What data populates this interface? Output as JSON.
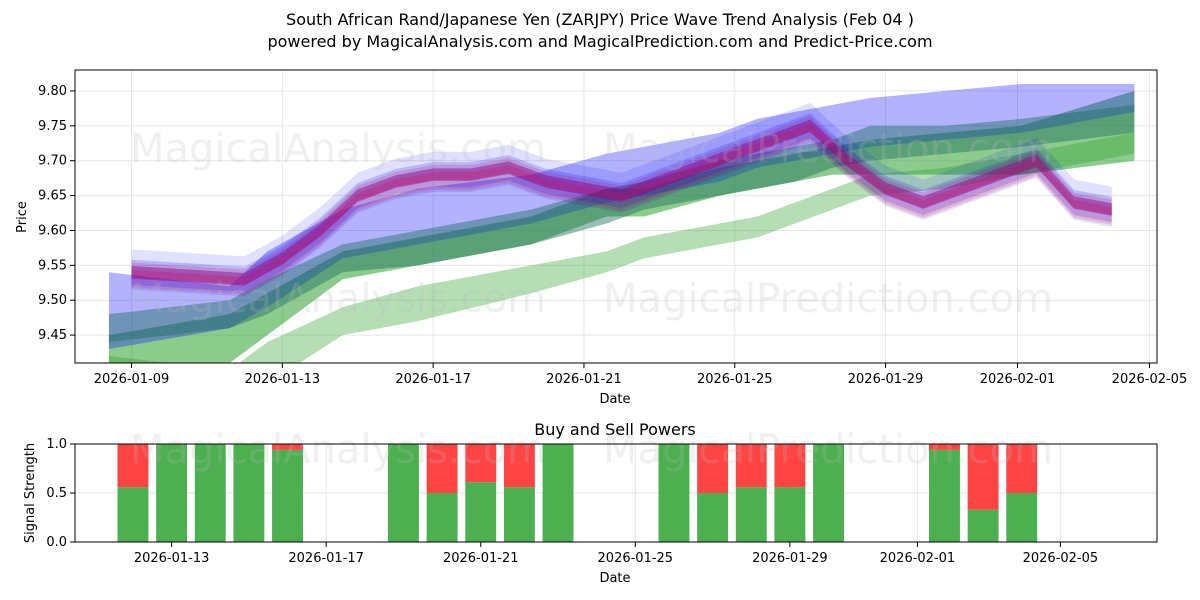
{
  "header": {
    "title_line1": "South African Rand/Japanese Yen (ZARJPY) Price Wave Trend Analysis (Feb 04 )",
    "title_line2": "powered by MagicalAnalysis.com and MagicalPrediction.com and Predict-Price.com"
  },
  "watermarks": {
    "w1": "MagicalAnalysis.com",
    "w2": "MagicalPrediction.com"
  },
  "colors": {
    "green": "#2ca02c",
    "blue": "#0000ff",
    "red": "#ff0000",
    "purple": "#8b008b",
    "bar_green": "#4caf50",
    "bar_red": "#ff4444"
  },
  "chart_data": [
    {
      "type": "area",
      "title": "",
      "xlabel": "Date",
      "ylabel": "Price",
      "ylim": [
        9.41,
        9.83
      ],
      "x_range_days": [
        -1.5,
        27.2
      ],
      "x_tick_labels": [
        "2026-01-09",
        "2026-01-13",
        "2026-01-17",
        "2026-01-21",
        "2026-01-25",
        "2026-01-29",
        "2026-02-01",
        "2026-02-05"
      ],
      "x_tick_days": [
        0,
        4,
        8,
        12,
        16,
        20,
        23.5,
        27
      ],
      "y_ticks": [
        9.45,
        9.5,
        9.55,
        9.6,
        9.65,
        9.7,
        9.75,
        9.8
      ],
      "y_tick_labels": [
        "9.45",
        "9.50",
        "9.55",
        "9.60",
        "9.65",
        "9.70",
        "9.75",
        "9.80"
      ],
      "x_days": [
        -0.6,
        2.6,
        3.6,
        5.6,
        7.6,
        10.6,
        12.6,
        13.6,
        15.6,
        16.6,
        17.6,
        18.6,
        19.6,
        21.6,
        23.6,
        26.6
      ],
      "series": [
        {
          "name": "green-lower",
          "color": "green",
          "opacity": 0.35,
          "lower": [
            9.32,
            9.35,
            9.38,
            9.45,
            9.47,
            9.51,
            9.54,
            9.56,
            9.58,
            9.59,
            9.61,
            9.63,
            9.65,
            9.66,
            9.68,
            9.71
          ],
          "upper": [
            9.42,
            9.4,
            9.44,
            9.49,
            9.52,
            9.55,
            9.57,
            9.59,
            9.61,
            9.62,
            9.64,
            9.66,
            9.68,
            9.69,
            9.71,
            9.74
          ]
        },
        {
          "name": "green-upper",
          "color": "green",
          "opacity": 0.55,
          "lower": [
            9.37,
            9.41,
            9.45,
            9.53,
            9.55,
            9.58,
            9.62,
            9.62,
            9.65,
            9.66,
            9.67,
            9.68,
            9.68,
            9.68,
            9.68,
            9.7
          ],
          "upper": [
            9.45,
            9.48,
            9.51,
            9.57,
            9.59,
            9.62,
            9.66,
            9.66,
            9.69,
            9.7,
            9.71,
            9.72,
            9.73,
            9.74,
            9.75,
            9.8
          ]
        },
        {
          "name": "blue-band",
          "color": "blue",
          "opacity": 0.3,
          "lower": [
            9.43,
            9.46,
            9.49,
            9.56,
            9.58,
            9.61,
            9.64,
            9.65,
            9.67,
            9.69,
            9.7,
            9.71,
            9.72,
            9.73,
            9.74,
            9.77
          ],
          "upper": [
            9.54,
            9.52,
            9.57,
            9.63,
            9.66,
            9.68,
            9.71,
            9.72,
            9.74,
            9.76,
            9.77,
            9.78,
            9.79,
            9.8,
            9.81,
            9.81
          ]
        },
        {
          "name": "teal-mix",
          "color": "teal",
          "opacity": 0.45,
          "lower": [
            9.44,
            9.46,
            9.48,
            9.54,
            9.55,
            9.58,
            9.61,
            9.63,
            9.65,
            9.66,
            9.67,
            9.69,
            9.7,
            9.71,
            9.72,
            9.74
          ],
          "upper": [
            9.48,
            9.5,
            9.53,
            9.58,
            9.6,
            9.63,
            9.66,
            9.67,
            9.7,
            9.71,
            9.72,
            9.73,
            9.75,
            9.75,
            9.76,
            9.78
          ]
        }
      ],
      "wave": {
        "x_days": [
          0,
          3,
          4,
          5,
          6,
          7,
          8,
          9,
          10,
          11,
          12,
          13,
          14,
          15,
          16,
          17,
          18,
          19,
          20,
          21,
          22,
          23,
          24,
          25,
          26
        ],
        "values": [
          9.54,
          9.53,
          9.56,
          9.6,
          9.65,
          9.67,
          9.68,
          9.68,
          9.69,
          9.67,
          9.66,
          9.65,
          9.67,
          9.69,
          9.71,
          9.73,
          9.75,
          9.7,
          9.66,
          9.64,
          9.66,
          9.68,
          9.7,
          9.64,
          9.63
        ],
        "band_outer": 0.018,
        "band_inner": 0.009
      }
    },
    {
      "type": "bar",
      "title": "Buy and Sell Powers",
      "xlabel": "Date",
      "ylabel": "Signal Strength",
      "ylim": [
        0,
        1.0
      ],
      "y_ticks": [
        0,
        0.5,
        1.0
      ],
      "y_tick_labels": [
        "0.0",
        "0.5",
        "1.0"
      ],
      "x_range_days": [
        -1.5,
        26.5
      ],
      "x_tick_labels": [
        "2026-01-13",
        "2026-01-17",
        "2026-01-21",
        "2026-01-25",
        "2026-01-29",
        "2026-02-01",
        "2026-02-05"
      ],
      "x_tick_days": [
        1,
        5,
        9,
        13,
        17,
        20.3,
        24
      ],
      "bars": [
        {
          "day": 0,
          "buy": 0.56
        },
        {
          "day": 1,
          "buy": 1.0
        },
        {
          "day": 2,
          "buy": 1.0
        },
        {
          "day": 3,
          "buy": 1.0
        },
        {
          "day": 4,
          "buy": 0.94
        },
        {
          "day": 7,
          "buy": 1.0
        },
        {
          "day": 8,
          "buy": 0.5
        },
        {
          "day": 9,
          "buy": 0.61
        },
        {
          "day": 10,
          "buy": 0.56
        },
        {
          "day": 11,
          "buy": 1.0
        },
        {
          "day": 14,
          "buy": 1.0
        },
        {
          "day": 15,
          "buy": 0.5
        },
        {
          "day": 16,
          "buy": 0.56
        },
        {
          "day": 17,
          "buy": 0.56
        },
        {
          "day": 18,
          "buy": 1.0
        },
        {
          "day": 21,
          "buy": 0.94
        },
        {
          "day": 22,
          "buy": 0.33
        },
        {
          "day": 23,
          "buy": 0.5
        }
      ]
    }
  ]
}
